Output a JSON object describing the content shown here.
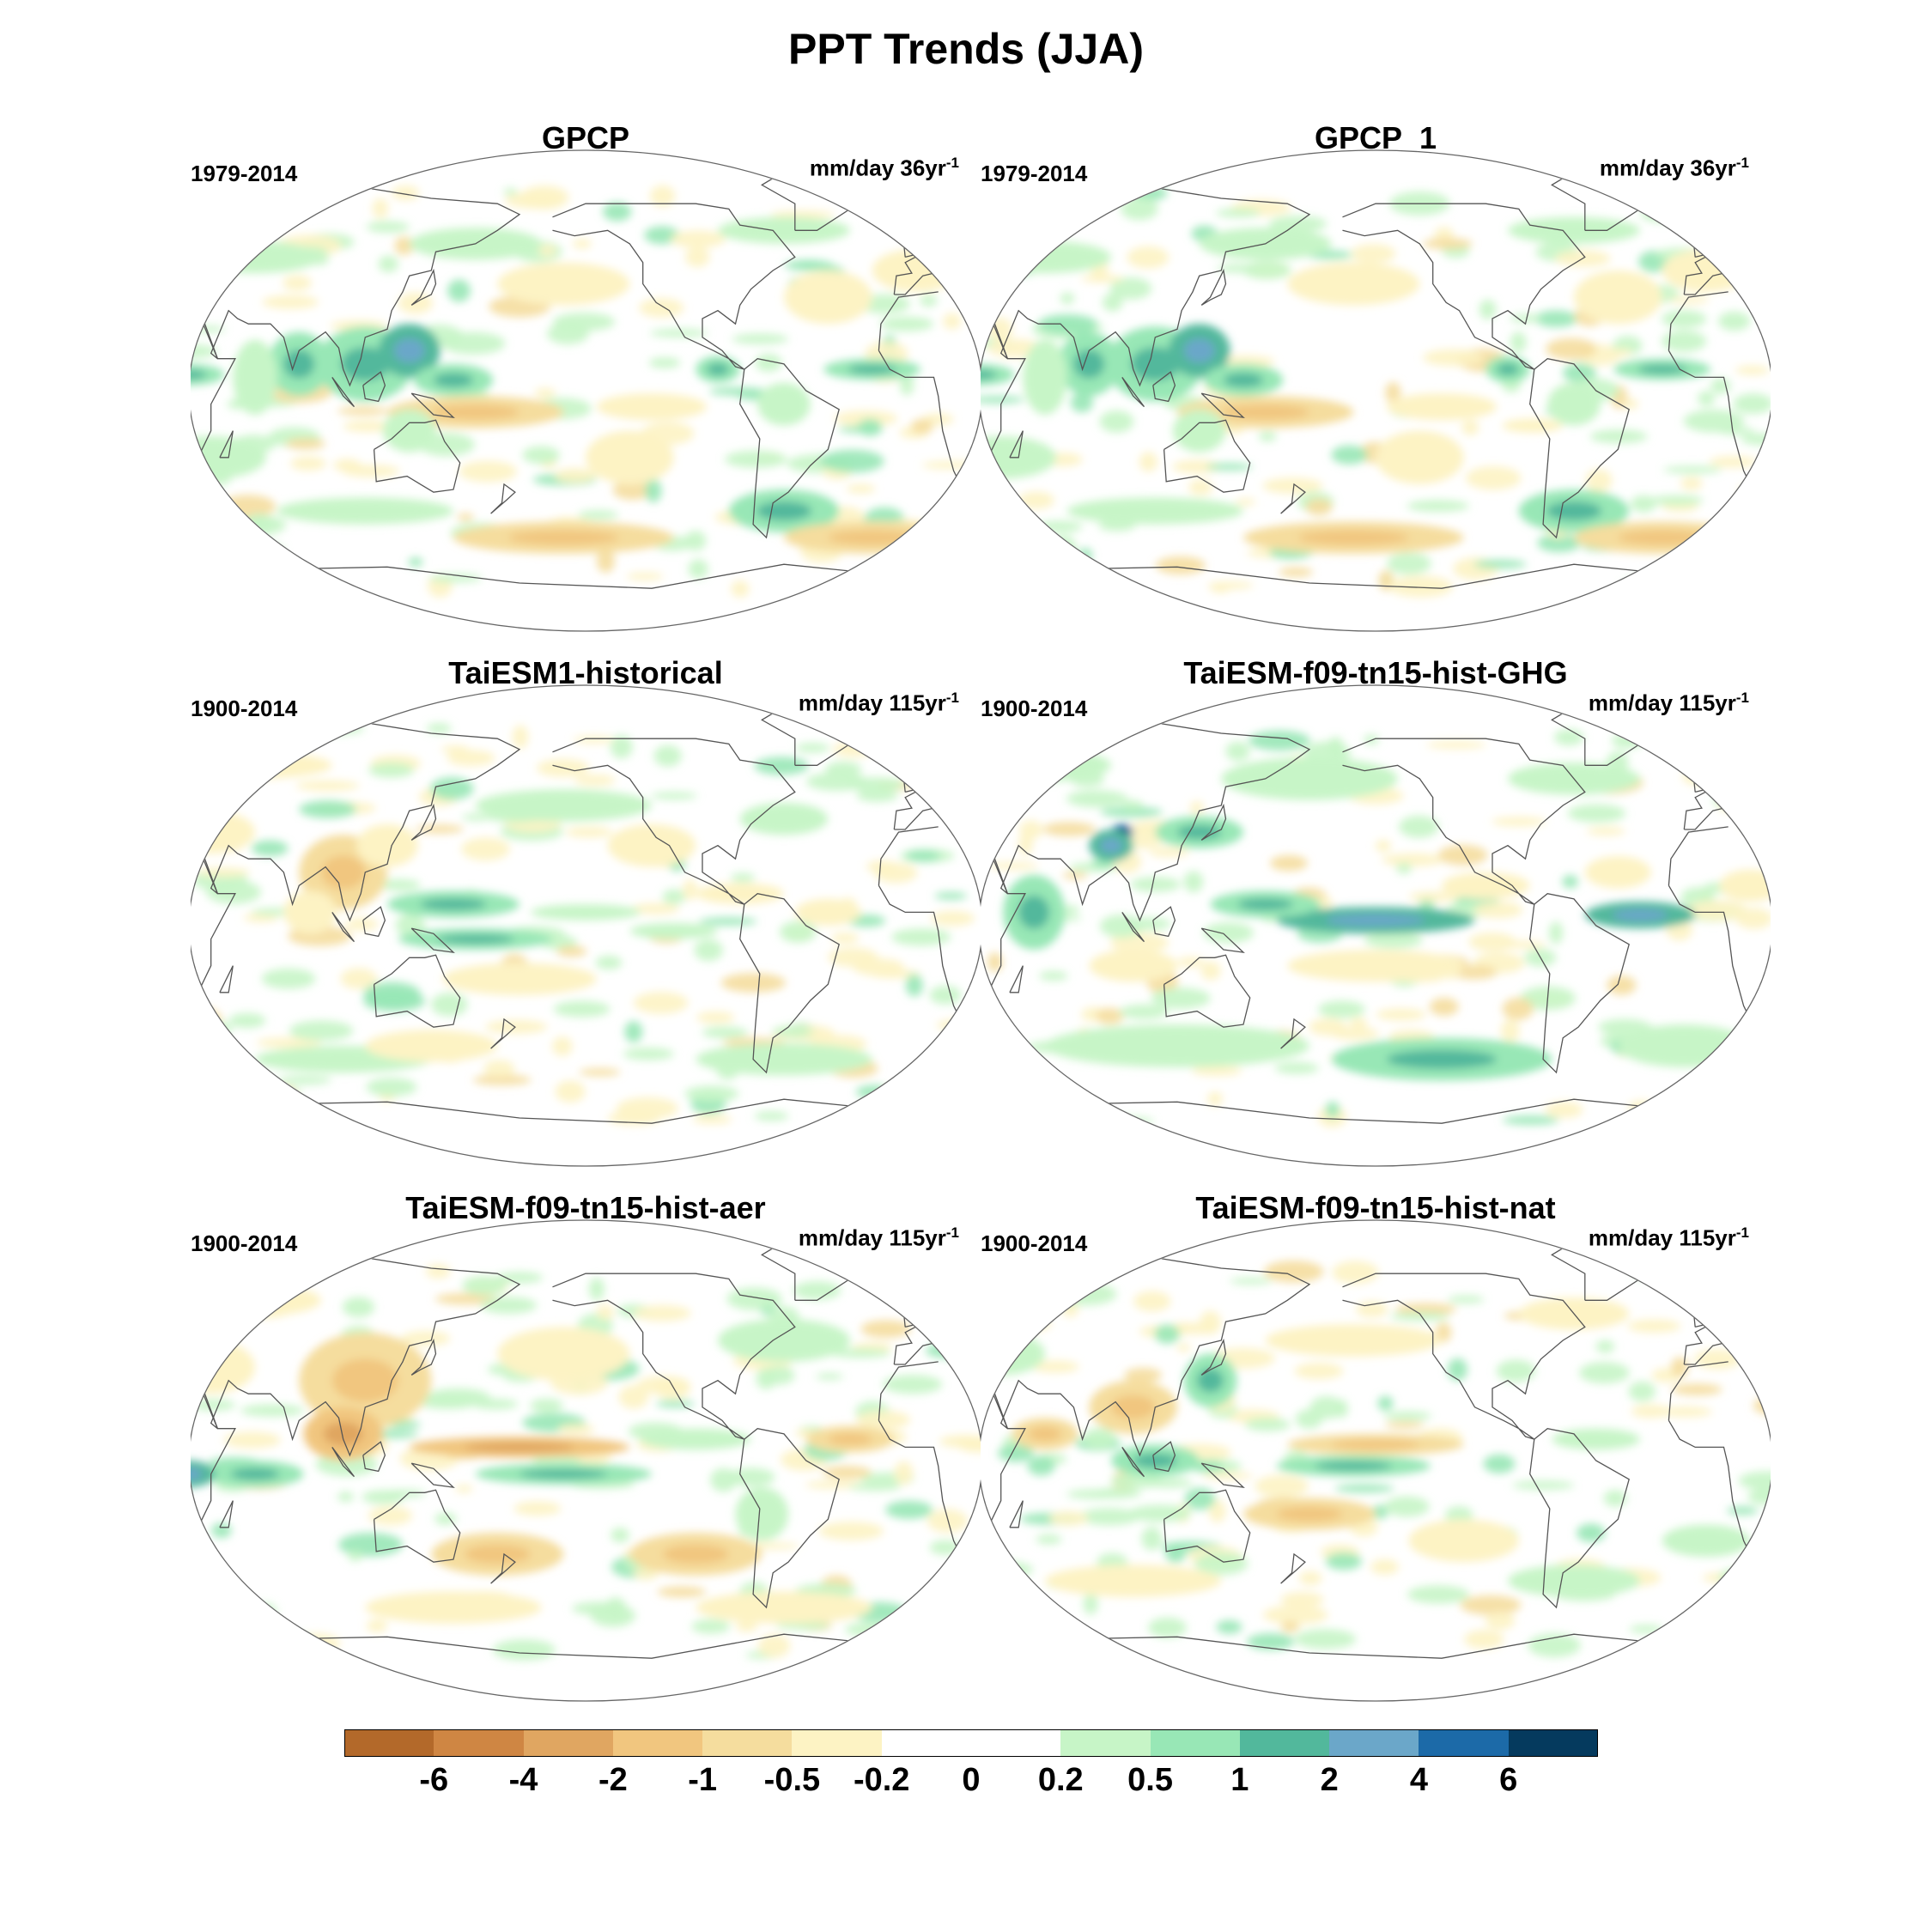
{
  "figure": {
    "title": "PPT Trends (JJA)"
  },
  "panels": [
    {
      "title": "GPCP",
      "period": "1979-2014",
      "units": "mm/day 36yr",
      "units_exp": "-1",
      "pattern": "obs"
    },
    {
      "title": "GPCP_1",
      "period": "1979-2014",
      "units": "mm/day 36yr",
      "units_exp": "-1",
      "pattern": "obs"
    },
    {
      "title": "TaiESM1-historical",
      "period": "1900-2014",
      "units": "mm/day 115yr",
      "units_exp": "-1",
      "pattern": "hist"
    },
    {
      "title": "TaiESM-f09-tn15-hist-GHG",
      "period": "1900-2014",
      "units": "mm/day 115yr",
      "units_exp": "-1",
      "pattern": "ghg"
    },
    {
      "title": "TaiESM-f09-tn15-hist-aer",
      "period": "1900-2014",
      "units": "mm/day 115yr",
      "units_exp": "-1",
      "pattern": "aer"
    },
    {
      "title": "TaiESM-f09-tn15-hist-nat",
      "period": "1900-2014",
      "units": "mm/day 115yr",
      "units_exp": "-1",
      "pattern": "nat"
    }
  ],
  "colorbar": {
    "levels": [
      "-6",
      "-4",
      "-2",
      "-1",
      "-0.5",
      "-0.2",
      "0",
      "0.2",
      "0.5",
      "1",
      "2",
      "4",
      "6"
    ],
    "colors": [
      "#b3692a",
      "#cf8643",
      "#e0a661",
      "#f1c67f",
      "#f5dd9e",
      "#fdf3c4",
      "#ffffff",
      "#ffffff",
      "#c7f5c7",
      "#98e7b6",
      "#52b89c",
      "#6ba7c9",
      "#1c6aa8",
      "#053a5e"
    ]
  }
}
